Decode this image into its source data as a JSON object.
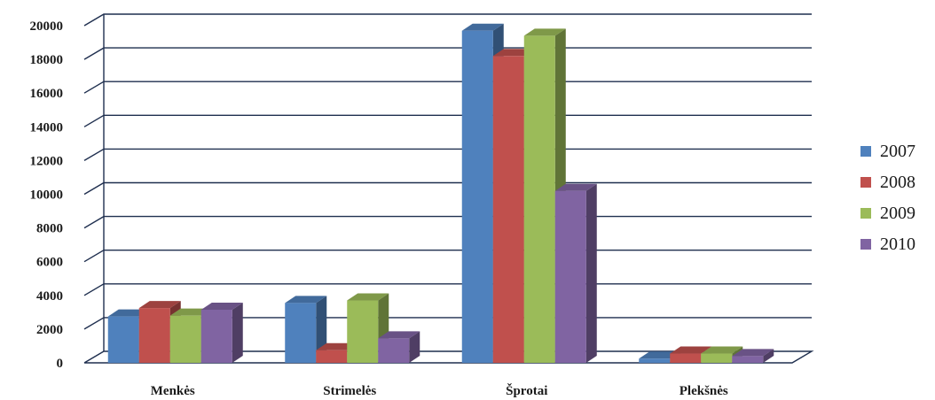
{
  "chart_data": {
    "type": "bar",
    "style": "3d-clustered-column",
    "categories": [
      "Menkės",
      "Strimelės",
      "Šprotai",
      "Plekšnės"
    ],
    "series": [
      {
        "name": "2007",
        "color": "#4f81bd",
        "values": [
          2750,
          3550,
          19700,
          250
        ]
      },
      {
        "name": "2008",
        "color": "#c0504d",
        "values": [
          3250,
          750,
          18200,
          550
        ]
      },
      {
        "name": "2009",
        "color": "#9bbb59",
        "values": [
          2800,
          3700,
          19400,
          550
        ]
      },
      {
        "name": "2010",
        "color": "#8064a2",
        "values": [
          3150,
          1450,
          10200,
          400
        ]
      }
    ],
    "ylim": [
      0,
      20000
    ],
    "yticks": [
      "0",
      "2000",
      "4000",
      "6000",
      "8000",
      "10000",
      "12000",
      "14000",
      "16000",
      "18000",
      "20000"
    ],
    "grid": true,
    "legend_position": "right"
  }
}
